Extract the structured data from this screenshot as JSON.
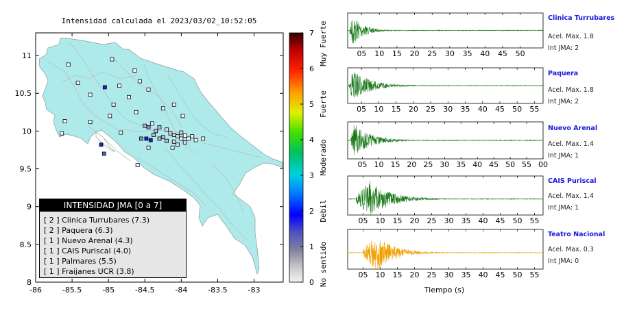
{
  "map_title": "Intensidad calculada el 2023/03/02_10:52:05",
  "map_axes": {
    "x_ticks": [
      "-86",
      "-85.5",
      "-85",
      "-84.5",
      "-84",
      "-83.5",
      "-83"
    ],
    "y_ticks": [
      "8",
      "8.5",
      "9",
      "9.5",
      "10",
      "10.5",
      "11"
    ]
  },
  "colorbar": {
    "ticks": [
      "0",
      "1",
      "2",
      "3",
      "4",
      "5",
      "6",
      "7"
    ],
    "categories": [
      "No sentido",
      "Debil",
      "Moderado",
      "Fuerte",
      "Muy Fuerte"
    ]
  },
  "legend": {
    "title": "INTENSIDAD JMA [0 a 7]",
    "items": [
      "[ 2 ]  Clinica Turrubares (7.3)",
      "[ 2 ]  Paquera (6.3)",
      "[ 1 ]  Nuevo Arenal (4.3)",
      "[ 1 ]  CAIS Puriscal (4.0)",
      "[ 1 ]  Palmares (5.5)",
      "[ 1 ]  Fraijanes UCR (3.8)"
    ]
  },
  "seismograms": {
    "xlabel": "Tiempo (s)",
    "stations": [
      {
        "name": "Clinica Turrubares",
        "accel": "Acel. Max. 1.8",
        "jma": "Int JMA: 2",
        "color": "#1a7a1a",
        "ticks": [
          "05",
          "10",
          "15",
          "20",
          "25",
          "30",
          "35",
          "40",
          "45",
          "50"
        ]
      },
      {
        "name": "Paquera",
        "accel": "Acel. Max. 1.8",
        "jma": "Int JMA: 2",
        "color": "#1a7a1a",
        "ticks": [
          "05",
          "10",
          "15",
          "20",
          "25",
          "30",
          "35",
          "40",
          "45",
          "50",
          "55"
        ]
      },
      {
        "name": "Nuevo Arenal",
        "accel": "Acel. Max. 1.4",
        "jma": "Int JMA: 1",
        "color": "#1a7a1a",
        "ticks": [
          "05",
          "10",
          "15",
          "20",
          "25",
          "30",
          "35",
          "40",
          "45",
          "50",
          "55",
          "00"
        ]
      },
      {
        "name": "CAIS Puriscal",
        "accel": "Acel. Max. 1.4",
        "jma": "Int JMA: 1",
        "color": "#1a7a1a",
        "ticks": [
          "05",
          "10",
          "15",
          "20",
          "25",
          "30",
          "35",
          "40",
          "45",
          "50",
          "55"
        ]
      },
      {
        "name": "Teatro Nacional",
        "accel": "Acel. Max. 0.3",
        "jma": "Int JMA: 0",
        "color": "#f0a000",
        "ticks": [
          "05",
          "10",
          "15",
          "20",
          "25",
          "30",
          "35",
          "40",
          "45",
          "50",
          "55"
        ]
      }
    ]
  },
  "chart_data": {
    "type": "scatter",
    "title": "Intensidad calculada el 2023/03/02_10:52:05",
    "xlim": [
      -86,
      -82.6
    ],
    "ylim": [
      8,
      11.3
    ],
    "colorbar_range": [
      0,
      7
    ],
    "points": [
      {
        "x": -85.55,
        "y": 10.88,
        "intensity": 0.3
      },
      {
        "x": -84.95,
        "y": 10.95,
        "intensity": 0.3
      },
      {
        "x": -84.64,
        "y": 10.8,
        "intensity": 0.3
      },
      {
        "x": -84.45,
        "y": 10.55,
        "intensity": 0.3
      },
      {
        "x": -84.57,
        "y": 10.66,
        "intensity": 0.3
      },
      {
        "x": -85.42,
        "y": 10.64,
        "intensity": 0.3
      },
      {
        "x": -85.05,
        "y": 10.58,
        "intensity": 1.8
      },
      {
        "x": -84.85,
        "y": 10.6,
        "intensity": 0.3
      },
      {
        "x": -84.72,
        "y": 10.45,
        "intensity": 0.3
      },
      {
        "x": -84.93,
        "y": 10.35,
        "intensity": 0.3
      },
      {
        "x": -85.25,
        "y": 10.48,
        "intensity": 0.3
      },
      {
        "x": -84.98,
        "y": 10.2,
        "intensity": 0.3
      },
      {
        "x": -84.62,
        "y": 10.25,
        "intensity": 0.3
      },
      {
        "x": -84.1,
        "y": 10.35,
        "intensity": 0.3
      },
      {
        "x": -83.98,
        "y": 10.2,
        "intensity": 0.3
      },
      {
        "x": -84.25,
        "y": 10.3,
        "intensity": 0.3
      },
      {
        "x": -84.4,
        "y": 10.1,
        "intensity": 0.3
      },
      {
        "x": -85.6,
        "y": 10.13,
        "intensity": 0.3
      },
      {
        "x": -85.64,
        "y": 9.97,
        "intensity": 0.3
      },
      {
        "x": -85.25,
        "y": 10.12,
        "intensity": 0.3
      },
      {
        "x": -84.83,
        "y": 9.98,
        "intensity": 0.3
      },
      {
        "x": -84.5,
        "y": 10.07,
        "intensity": 1.0
      },
      {
        "x": -84.45,
        "y": 10.05,
        "intensity": 1.2
      },
      {
        "x": -84.35,
        "y": 10.0,
        "intensity": 1.0
      },
      {
        "x": -84.3,
        "y": 10.05,
        "intensity": 0.8
      },
      {
        "x": -84.2,
        "y": 10.02,
        "intensity": 0.6
      },
      {
        "x": -84.15,
        "y": 9.97,
        "intensity": 0.5
      },
      {
        "x": -84.1,
        "y": 9.95,
        "intensity": 0.5
      },
      {
        "x": -84.05,
        "y": 9.93,
        "intensity": 0.6
      },
      {
        "x": -84.0,
        "y": 9.98,
        "intensity": 0.5
      },
      {
        "x": -83.95,
        "y": 9.94,
        "intensity": 0.4
      },
      {
        "x": -84.25,
        "y": 9.92,
        "intensity": 1.0
      },
      {
        "x": -84.2,
        "y": 9.87,
        "intensity": 0.8
      },
      {
        "x": -84.1,
        "y": 9.86,
        "intensity": 0.7
      },
      {
        "x": -84.05,
        "y": 9.82,
        "intensity": 0.6
      },
      {
        "x": -84.48,
        "y": 9.9,
        "intensity": 1.8
      },
      {
        "x": -84.42,
        "y": 9.88,
        "intensity": 1.7
      },
      {
        "x": -84.55,
        "y": 9.9,
        "intensity": 1.1
      },
      {
        "x": -84.38,
        "y": 9.95,
        "intensity": 1.0
      },
      {
        "x": -84.3,
        "y": 9.9,
        "intensity": 0.9
      },
      {
        "x": -84.0,
        "y": 9.9,
        "intensity": 0.4
      },
      {
        "x": -83.95,
        "y": 9.85,
        "intensity": 0.5
      },
      {
        "x": -83.9,
        "y": 9.9,
        "intensity": 0.4
      },
      {
        "x": -83.85,
        "y": 9.93,
        "intensity": 0.4
      },
      {
        "x": -83.8,
        "y": 9.88,
        "intensity": 0.4
      },
      {
        "x": -83.7,
        "y": 9.9,
        "intensity": 0.3
      },
      {
        "x": -84.12,
        "y": 9.78,
        "intensity": 0.4
      },
      {
        "x": -84.45,
        "y": 9.78,
        "intensity": 0.3
      },
      {
        "x": -84.6,
        "y": 9.55,
        "intensity": 0.3
      },
      {
        "x": -85.1,
        "y": 9.82,
        "intensity": 1.8
      },
      {
        "x": -85.06,
        "y": 9.7,
        "intensity": 1.6
      }
    ]
  }
}
